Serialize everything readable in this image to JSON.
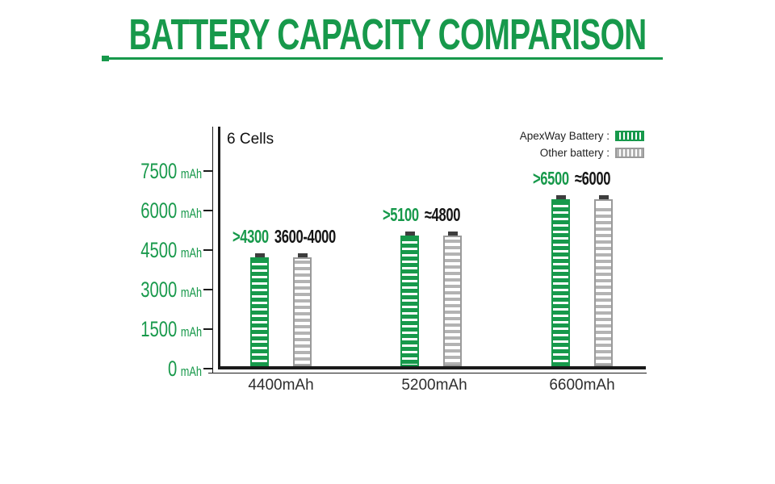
{
  "title": "BATTERY CAPACITY COMPARISON",
  "chart_data": {
    "type": "bar",
    "title": "BATTERY CAPACITY COMPARISON",
    "cells_label": "6 Cells",
    "categories": [
      "4400mAh",
      "5200mAh",
      "6600mAh"
    ],
    "series": [
      {
        "name": "ApexWay Battery",
        "style": "green-striped-battery",
        "color": "#17994b",
        "values": [
          4300,
          5100,
          6500
        ],
        "value_labels": [
          ">4300",
          ">5100",
          ">6500"
        ]
      },
      {
        "name": "Other battery",
        "style": "gray-striped-battery",
        "color": "#b3b3b3",
        "values": [
          4000,
          4800,
          6000
        ],
        "value_labels": [
          "3600-4000",
          "≈4800",
          "≈6000"
        ]
      }
    ],
    "y_axis": {
      "unit": "mAh",
      "min": 0,
      "max": 7500,
      "step": 1500,
      "ticks": [
        {
          "value": "7500",
          "unit": "mAh"
        },
        {
          "value": "6000",
          "unit": "mAh"
        },
        {
          "value": "4500",
          "unit": "mAh"
        },
        {
          "value": "3000",
          "unit": "mAh"
        },
        {
          "value": "1500",
          "unit": "mAh"
        },
        {
          "value": "0",
          "unit": "mAh"
        }
      ]
    },
    "legend": {
      "position": "top-right",
      "items": [
        {
          "label": "ApexWay Battery :",
          "swatch": "green-striped"
        },
        {
          "label": "Other battery :",
          "swatch": "gray-striped"
        }
      ]
    },
    "grid": "off",
    "colors": {
      "green": "#17994b",
      "gray_stripe": "#b3b3b3",
      "gray_border": "#9a9a9a",
      "battery_cap": "#3d3d3d",
      "axis": "#1a1a1a"
    }
  }
}
